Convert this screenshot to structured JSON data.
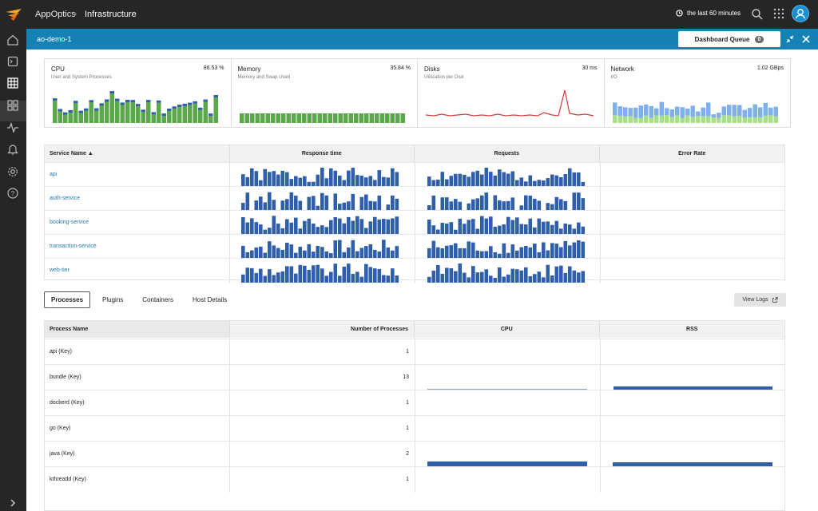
{
  "topbar": {
    "brand": "AppOptics",
    "section": "Infrastructure",
    "time_range": "the last 60 minutes"
  },
  "host": {
    "name": "ao-demo-1",
    "dashboard_queue_label": "Dashboard Queue",
    "dashboard_queue_count": "0"
  },
  "summary": [
    {
      "title": "CPU",
      "subtitle": "User and System Processes",
      "value": "86.53 %"
    },
    {
      "title": "Memory",
      "subtitle": "Memory and Swap Used",
      "value": "35.84 %"
    },
    {
      "title": "Disks",
      "subtitle": "Utilization per Disk",
      "value": "30 ms"
    },
    {
      "title": "Network",
      "subtitle": "I/O",
      "value": "1.02 GBps"
    }
  ],
  "services": {
    "headers": {
      "name": "Service Name ▲",
      "response": "Response time",
      "requests": "Requests",
      "error": "Error Rate"
    },
    "rows": [
      {
        "name": "api"
      },
      {
        "name": "auth-service"
      },
      {
        "name": "booking-service"
      },
      {
        "name": "transaction-service"
      },
      {
        "name": "web-tier"
      }
    ]
  },
  "tabs": [
    "Processes",
    "Plugins",
    "Containers",
    "Host Details"
  ],
  "view_logs": "View Logs",
  "processes": {
    "headers": {
      "name": "Process Name",
      "count": "Number of Processes",
      "cpu": "CPU",
      "rss": "RSS"
    },
    "rows": [
      {
        "name": "api (Key)",
        "count": "1"
      },
      {
        "name": "bundle (Key)",
        "count": "13"
      },
      {
        "name": "dockerd (Key)",
        "count": "1"
      },
      {
        "name": "go (Key)",
        "count": "1"
      },
      {
        "name": "java (Key)",
        "count": "2"
      },
      {
        "name": "kthreadd (Key)",
        "count": "1"
      }
    ]
  },
  "colors": {
    "accent": "#1581b4",
    "bar": "#2f5fa8",
    "cpu_green": "#5aa84a",
    "disk_red": "#d23a3a",
    "net_blue": "#7fb0ea",
    "net_green": "#a8e08a"
  }
}
